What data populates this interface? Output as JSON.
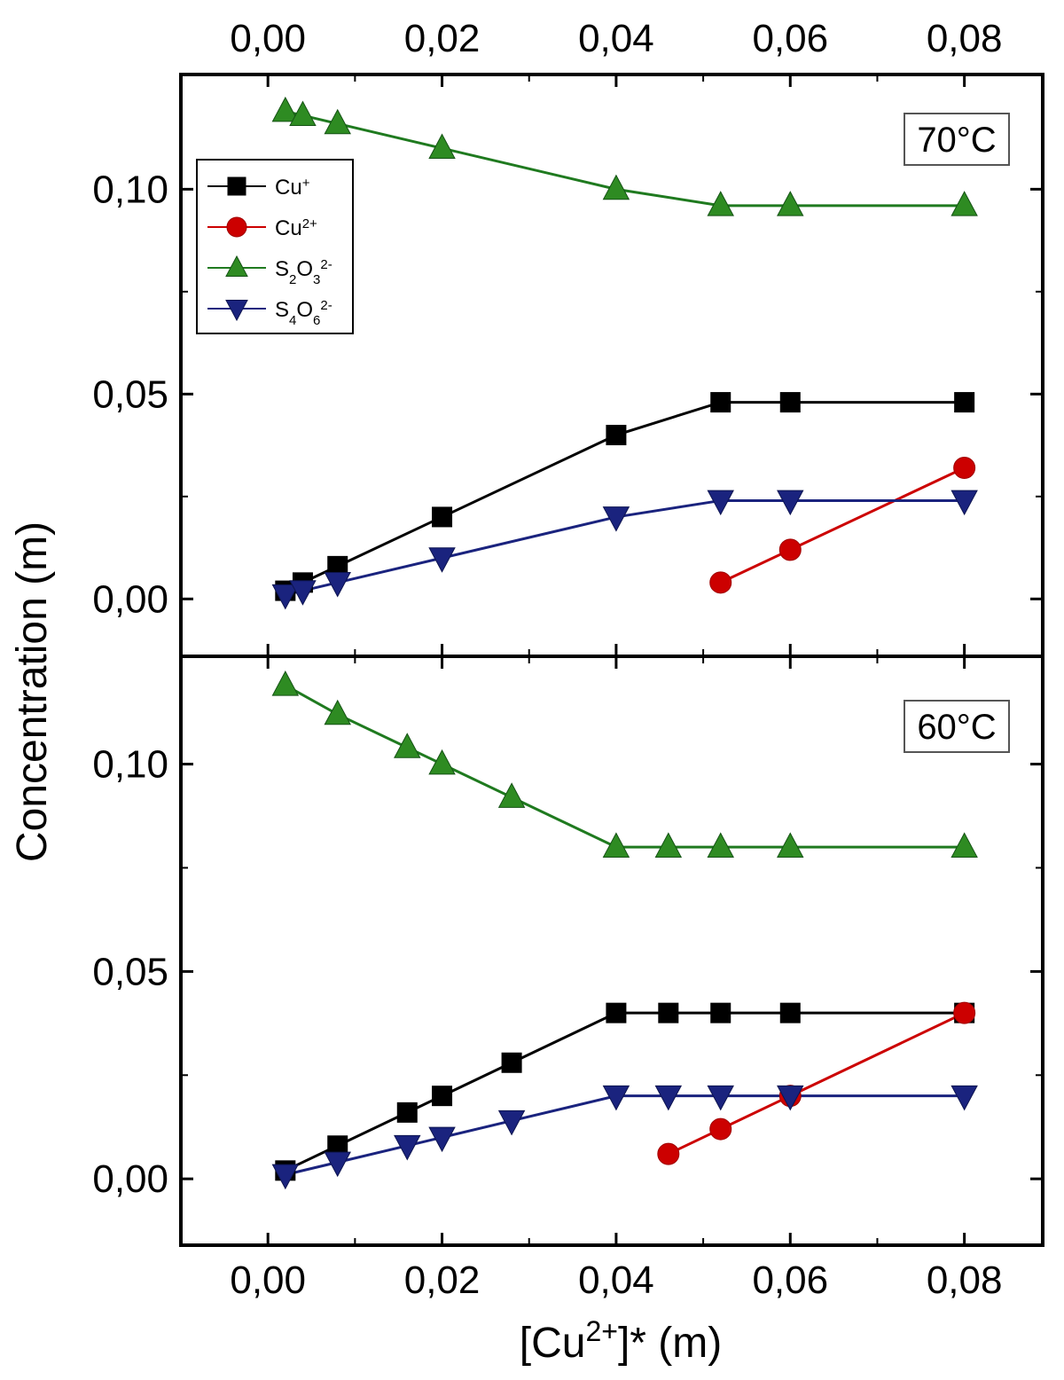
{
  "chart_data": {
    "type": "line",
    "xlabel_main": "[Cu",
    "xlabel_sup": "2+",
    "xlabel_rest": "]* (m)",
    "ylabel": "Concentration (m)",
    "xlim": [
      -0.01,
      0.089
    ],
    "x_ticks": [
      "0,00",
      "0,02",
      "0,04",
      "0,06",
      "0,08"
    ],
    "x_tick_values": [
      0.0,
      0.02,
      0.04,
      0.06,
      0.08
    ],
    "y_ticks": [
      "0,00",
      "0,05",
      "0,10"
    ],
    "y_tick_values": [
      0.0,
      0.05,
      0.1
    ],
    "legend": [
      {
        "base": "Cu",
        "sub": "",
        "sub2": "",
        "sup": "+"
      },
      {
        "base": "Cu",
        "sub": "",
        "sub2": "",
        "sup": "2+"
      },
      {
        "base": "S",
        "sub": "2",
        "mid": "O",
        "sub2": "3",
        "sup": "2-"
      },
      {
        "base": "S",
        "sub": "4",
        "mid": "O",
        "sub2": "6",
        "sup": "2-"
      }
    ],
    "colors": {
      "cu_plus": "#000000",
      "cu_2plus": "#cc0000",
      "s2o3": "#1f7a1f",
      "s4o6": "#1a237e",
      "s2o3_fill": "#2e8b22",
      "s4o6_fill": "#1a237e",
      "cu_2plus_fill": "#cc0000"
    },
    "panels": [
      {
        "label": "70°C",
        "ylim": [
          -0.014,
          0.128
        ],
        "series": [
          {
            "name": "Cu+",
            "marker": "square",
            "x": [
              0.002,
              0.004,
              0.008,
              0.02,
              0.04,
              0.052,
              0.06,
              0.08
            ],
            "y": [
              0.002,
              0.004,
              0.008,
              0.02,
              0.04,
              0.048,
              0.048,
              0.048
            ]
          },
          {
            "name": "Cu2+",
            "marker": "circle",
            "x": [
              0.052,
              0.06,
              0.08
            ],
            "y": [
              0.004,
              0.012,
              0.032
            ]
          },
          {
            "name": "S2O3 2-",
            "marker": "triangle-up",
            "x": [
              0.002,
              0.004,
              0.008,
              0.02,
              0.04,
              0.052,
              0.06,
              0.08
            ],
            "y": [
              0.119,
              0.118,
              0.116,
              0.11,
              0.1,
              0.096,
              0.096,
              0.096
            ]
          },
          {
            "name": "S4O6 2-",
            "marker": "triangle-down",
            "x": [
              0.002,
              0.004,
              0.008,
              0.02,
              0.04,
              0.052,
              0.06,
              0.08
            ],
            "y": [
              0.001,
              0.002,
              0.004,
              0.01,
              0.02,
              0.024,
              0.024,
              0.024
            ]
          }
        ]
      },
      {
        "label": "60°C",
        "ylim": [
          -0.016,
          0.126
        ],
        "series": [
          {
            "name": "Cu+",
            "marker": "square",
            "x": [
              0.002,
              0.008,
              0.016,
              0.02,
              0.028,
              0.04,
              0.046,
              0.052,
              0.06,
              0.08
            ],
            "y": [
              0.002,
              0.008,
              0.016,
              0.02,
              0.028,
              0.04,
              0.04,
              0.04,
              0.04,
              0.04
            ]
          },
          {
            "name": "Cu2+",
            "marker": "circle",
            "x": [
              0.046,
              0.052,
              0.06,
              0.08
            ],
            "y": [
              0.006,
              0.012,
              0.02,
              0.04
            ]
          },
          {
            "name": "S2O3 2-",
            "marker": "triangle-up",
            "x": [
              0.002,
              0.008,
              0.016,
              0.02,
              0.028,
              0.04,
              0.046,
              0.052,
              0.06,
              0.08
            ],
            "y": [
              0.119,
              0.112,
              0.104,
              0.1,
              0.092,
              0.08,
              0.08,
              0.08,
              0.08,
              0.08
            ]
          },
          {
            "name": "S4O6 2-",
            "marker": "triangle-down",
            "x": [
              0.002,
              0.008,
              0.016,
              0.02,
              0.028,
              0.04,
              0.046,
              0.052,
              0.06,
              0.08
            ],
            "y": [
              0.001,
              0.004,
              0.008,
              0.01,
              0.014,
              0.02,
              0.02,
              0.02,
              0.02,
              0.02
            ]
          }
        ]
      }
    ]
  }
}
